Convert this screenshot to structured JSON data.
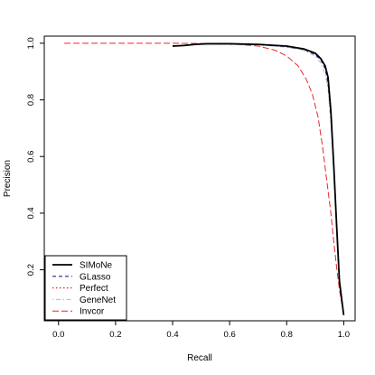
{
  "chart_data": {
    "type": "line",
    "title": "",
    "xlabel": "Recall",
    "ylabel": "Precision",
    "xlim": [
      0,
      1
    ],
    "ylim": [
      0.04,
      1.0
    ],
    "xticks": [
      0.0,
      0.2,
      0.4,
      0.6,
      0.8,
      1.0
    ],
    "xtick_labels": [
      "0.0",
      "0.2",
      "0.4",
      "0.6",
      "0.8",
      "1.0"
    ],
    "yticks": [
      0.2,
      0.4,
      0.6,
      0.8,
      1.0
    ],
    "ytick_labels": [
      "0.2",
      "0.4",
      "0.6",
      "0.8",
      "1.0"
    ],
    "grid": false,
    "legend_position": "bottom-left",
    "series": [
      {
        "name": "SIMoNe",
        "color": "#000000",
        "dash": "solid",
        "x": [
          0.4,
          0.44,
          0.48,
          0.52,
          0.6,
          0.7,
          0.8,
          0.86,
          0.9,
          0.92,
          0.935,
          0.945,
          0.955,
          0.965,
          0.975,
          0.985,
          1.0
        ],
        "y": [
          0.99,
          0.992,
          0.996,
          0.998,
          0.998,
          0.996,
          0.99,
          0.98,
          0.965,
          0.945,
          0.92,
          0.88,
          0.76,
          0.57,
          0.36,
          0.16,
          0.04
        ]
      },
      {
        "name": "GLasso",
        "color": "#1f2a8f",
        "dash": "dashed",
        "x": [
          0.4,
          0.44,
          0.48,
          0.52,
          0.6,
          0.7,
          0.8,
          0.86,
          0.9,
          0.92,
          0.935,
          0.945,
          0.955,
          0.965,
          0.975,
          0.985,
          1.0
        ],
        "y": [
          0.99,
          0.993,
          0.997,
          0.998,
          0.997,
          0.995,
          0.988,
          0.978,
          0.96,
          0.94,
          0.91,
          0.86,
          0.74,
          0.56,
          0.35,
          0.16,
          0.04
        ]
      },
      {
        "name": "Perfect",
        "color": "#e8272a",
        "dash": "dotted",
        "x": [
          0.4,
          0.44,
          0.48,
          0.52,
          0.6,
          0.7,
          0.8,
          0.86,
          0.9,
          0.92,
          0.935,
          0.945,
          0.955,
          0.965,
          0.975,
          0.985,
          1.0
        ],
        "y": [
          0.99,
          0.992,
          0.996,
          0.998,
          0.998,
          0.996,
          0.99,
          0.98,
          0.965,
          0.945,
          0.92,
          0.88,
          0.76,
          0.57,
          0.36,
          0.16,
          0.04
        ]
      },
      {
        "name": "GeneNet",
        "color": "#b9b9b9",
        "dash": "dotdash",
        "x": [
          0.4,
          0.44,
          0.48,
          0.52,
          0.6,
          0.7,
          0.8,
          0.86,
          0.9,
          0.92,
          0.935,
          0.945,
          0.955,
          0.965,
          0.975,
          0.985,
          1.0
        ],
        "y": [
          0.99,
          0.992,
          0.996,
          0.997,
          0.996,
          0.994,
          0.986,
          0.975,
          0.955,
          0.93,
          0.89,
          0.84,
          0.72,
          0.54,
          0.34,
          0.15,
          0.04
        ]
      },
      {
        "name": "Invcor",
        "color": "#e8272a",
        "dash": "longdash",
        "x": [
          0.02,
          0.2,
          0.4,
          0.6,
          0.7,
          0.76,
          0.8,
          0.84,
          0.87,
          0.89,
          0.91,
          0.925,
          0.94,
          0.955,
          0.965,
          0.975,
          0.985,
          1.0
        ],
        "y": [
          1.0,
          1.0,
          1.0,
          0.998,
          0.99,
          0.975,
          0.955,
          0.92,
          0.87,
          0.82,
          0.74,
          0.64,
          0.52,
          0.4,
          0.3,
          0.21,
          0.13,
          0.04
        ]
      }
    ]
  }
}
